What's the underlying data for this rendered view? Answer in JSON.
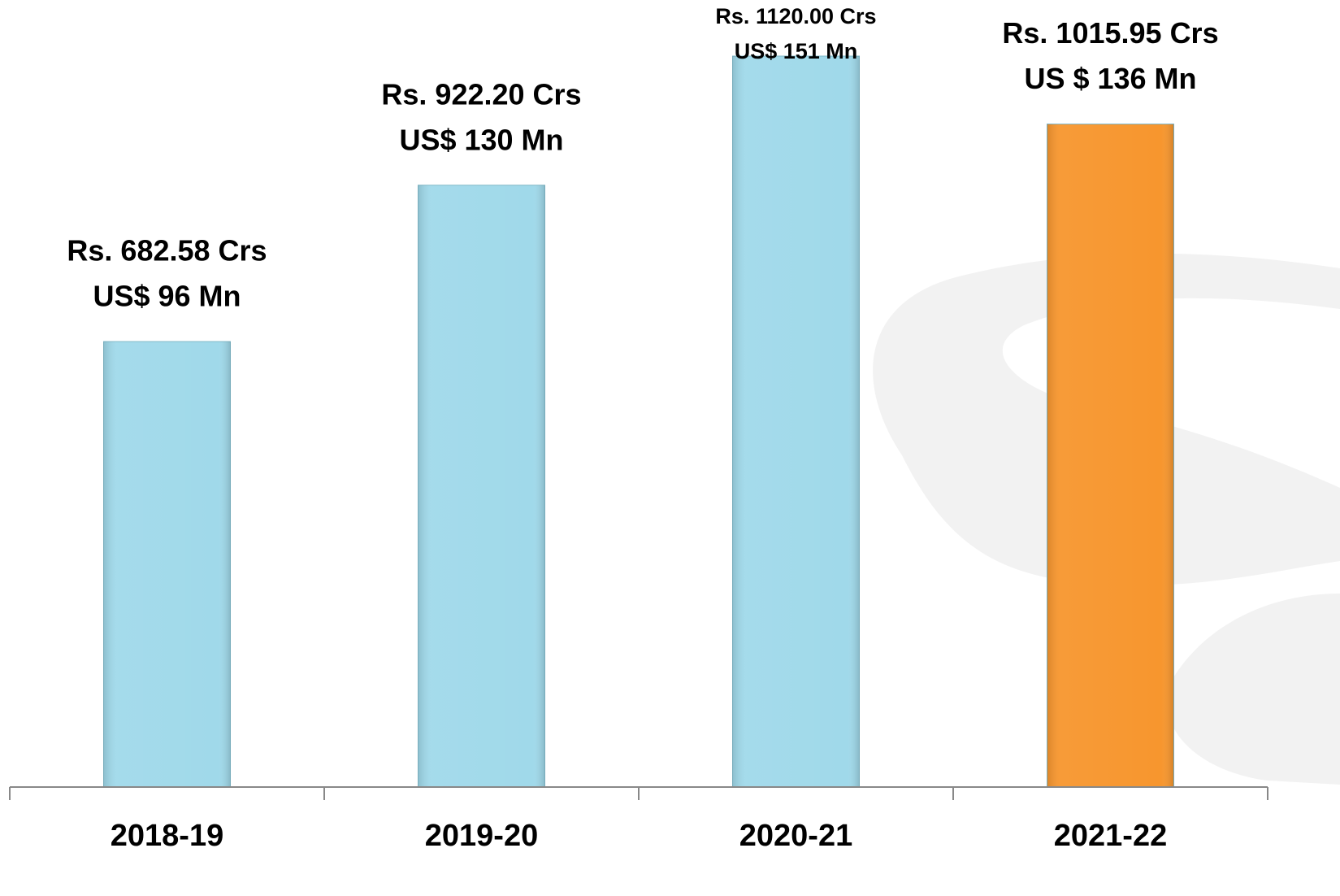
{
  "chart_data": {
    "type": "bar",
    "categories": [
      "2018-19",
      "2019-20",
      "2020-21",
      "2021-22"
    ],
    "values": [
      682.58,
      922.2,
      1120.0,
      1015.95
    ],
    "value_labels": [
      "Rs. 682.58 Crs",
      "Rs. 922.20 Crs",
      "Rs. 1120.00 Crs",
      "Rs. 1015.95 Crs"
    ],
    "usd_values": [
      96,
      130,
      151,
      136
    ],
    "usd_value_labels": [
      "US$ 96 Mn",
      "US$ 130 Mn",
      "US$ 151 Mn",
      "US $ 136 Mn"
    ],
    "colors": [
      "#a0d9ea",
      "#a0d9ea",
      "#a0d9ea",
      "#f7962e"
    ]
  }
}
